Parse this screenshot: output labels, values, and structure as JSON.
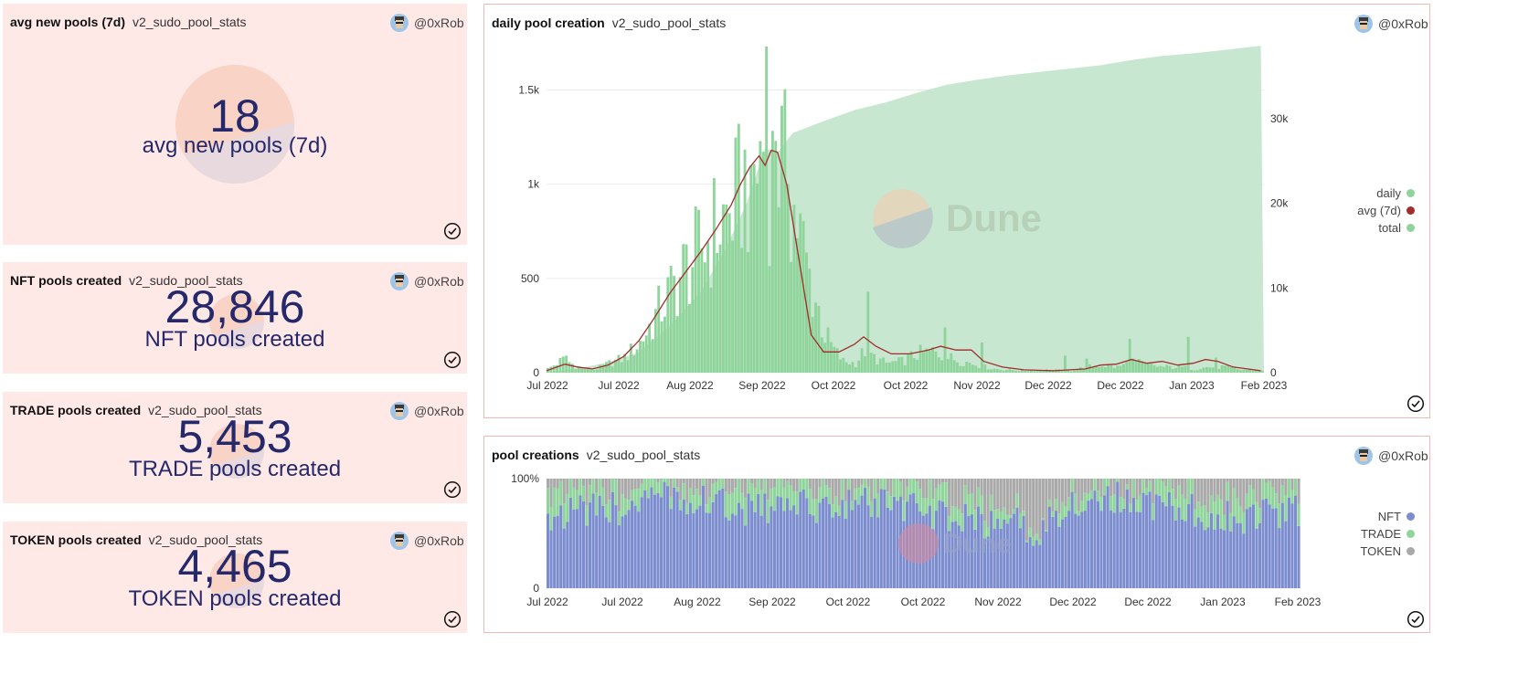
{
  "counters": [
    {
      "title": "avg new pools (7d)",
      "query": "v2_sudo_pool_stats",
      "author": "@0xRob",
      "value": "18",
      "label": "avg new pools (7d)"
    },
    {
      "title": "NFT pools created",
      "query": "v2_sudo_pool_stats",
      "author": "@0xRob",
      "value": "28,846",
      "label": "NFT pools created"
    },
    {
      "title": "TRADE pools created",
      "query": "v2_sudo_pool_stats",
      "author": "@0xRob",
      "value": "5,453",
      "label": "TRADE pools created"
    },
    {
      "title": "TOKEN pools created",
      "query": "v2_sudo_pool_stats",
      "author": "@0xRob",
      "value": "4,465",
      "label": "TOKEN pools created"
    }
  ],
  "daily_panel": {
    "title": "daily pool creation",
    "query": "v2_sudo_pool_stats",
    "author": "@0xRob",
    "watermark": "Dune"
  },
  "creations_panel": {
    "title": "pool creations",
    "query": "v2_sudo_pool_stats",
    "author": "@0xRob",
    "watermark": "Dune"
  },
  "colors": {
    "nft": "#7b8ccf",
    "trade": "#8fd49b",
    "token": "#a9a9a9",
    "avg": "#a42b2b",
    "total": "#c8e7d0",
    "accent": "#25296b"
  },
  "chart_data": [
    {
      "type": "bar",
      "title": "daily pool creation",
      "x_ticks": [
        "Jul 2022",
        "Jul 2022",
        "Aug 2022",
        "Sep 2022",
        "Oct 2022",
        "Oct 2022",
        "Nov 2022",
        "Dec 2022",
        "Dec 2022",
        "Jan 2023",
        "Feb 2023"
      ],
      "y_left_ticks": [
        "0",
        "500",
        "1k",
        "1.5k"
      ],
      "y_left_range": [
        0,
        1730
      ],
      "y_right_ticks": [
        "0",
        "10k",
        "20k",
        "30k"
      ],
      "y_right_range": [
        0,
        38500
      ],
      "series": [
        {
          "name": "daily",
          "type": "bar",
          "axis": "left",
          "color": "#8fd49b",
          "keypoints": [
            [
              0,
              20
            ],
            [
              5,
              70
            ],
            [
              10,
              30
            ],
            [
              15,
              15
            ],
            [
              20,
              50
            ],
            [
              25,
              80
            ],
            [
              30,
              160
            ],
            [
              35,
              300
            ],
            [
              40,
              430
            ],
            [
              45,
              560
            ],
            [
              50,
              650
            ],
            [
              55,
              780
            ],
            [
              60,
              850
            ],
            [
              63,
              980
            ],
            [
              66,
              1050
            ],
            [
              69,
              1130
            ],
            [
              70,
              1230
            ],
            [
              71,
              1730
            ],
            [
              72,
              1020
            ],
            [
              75,
              1150
            ],
            [
              78,
              1000
            ],
            [
              81,
              800
            ],
            [
              85,
              500
            ],
            [
              88,
              330
            ],
            [
              90,
              200
            ],
            [
              93,
              120
            ],
            [
              96,
              60
            ],
            [
              100,
              50
            ],
            [
              103,
              120
            ],
            [
              106,
              80
            ],
            [
              110,
              50
            ],
            [
              115,
              60
            ],
            [
              120,
              100
            ],
            [
              125,
              110
            ],
            [
              130,
              80
            ],
            [
              135,
              60
            ],
            [
              140,
              40
            ],
            [
              145,
              20
            ],
            [
              150,
              15
            ],
            [
              155,
              12
            ],
            [
              160,
              15
            ],
            [
              170,
              12
            ],
            [
              175,
              30
            ],
            [
              180,
              40
            ],
            [
              185,
              30
            ],
            [
              190,
              60
            ],
            [
              195,
              40
            ],
            [
              200,
              30
            ],
            [
              205,
              30
            ],
            [
              210,
              20
            ],
            [
              215,
              30
            ],
            [
              220,
              30
            ],
            [
              225,
              15
            ],
            [
              232,
              15
            ]
          ],
          "spikes": [
            [
              6,
              90
            ],
            [
              50,
              660
            ],
            [
              60,
              700
            ],
            [
              66,
              1100
            ],
            [
              71,
              1730
            ],
            [
              74,
              1230
            ],
            [
              78,
              1000
            ],
            [
              104,
              430
            ],
            [
              129,
              240
            ],
            [
              141,
              160
            ],
            [
              168,
              90
            ],
            [
              175,
              75
            ],
            [
              189,
              180
            ],
            [
              208,
              190
            ],
            [
              217,
              80
            ]
          ]
        },
        {
          "name": "avg (7d)",
          "type": "line",
          "axis": "left",
          "color": "#a42b2b",
          "points": [
            [
              0,
              10
            ],
            [
              6,
              45
            ],
            [
              10,
              30
            ],
            [
              15,
              20
            ],
            [
              20,
              40
            ],
            [
              25,
              85
            ],
            [
              30,
              170
            ],
            [
              35,
              290
            ],
            [
              40,
              420
            ],
            [
              45,
              530
            ],
            [
              50,
              640
            ],
            [
              55,
              760
            ],
            [
              60,
              890
            ],
            [
              63,
              1000
            ],
            [
              66,
              1090
            ],
            [
              69,
              1150
            ],
            [
              71,
              1100
            ],
            [
              73,
              1180
            ],
            [
              75,
              1170
            ],
            [
              78,
              1000
            ],
            [
              81,
              700
            ],
            [
              84,
              400
            ],
            [
              86,
              200
            ],
            [
              90,
              110
            ],
            [
              95,
              110
            ],
            [
              100,
              150
            ],
            [
              103,
              190
            ],
            [
              107,
              140
            ],
            [
              112,
              100
            ],
            [
              118,
              100
            ],
            [
              124,
              120
            ],
            [
              128,
              140
            ],
            [
              133,
              120
            ],
            [
              138,
              120
            ],
            [
              142,
              60
            ],
            [
              148,
              30
            ],
            [
              155,
              15
            ],
            [
              165,
              10
            ],
            [
              175,
              20
            ],
            [
              180,
              40
            ],
            [
              185,
              45
            ],
            [
              190,
              70
            ],
            [
              195,
              50
            ],
            [
              200,
              60
            ],
            [
              205,
              40
            ],
            [
              210,
              50
            ],
            [
              214,
              70
            ],
            [
              218,
              60
            ],
            [
              223,
              30
            ],
            [
              232,
              10
            ]
          ]
        },
        {
          "name": "total",
          "type": "area",
          "axis": "right",
          "color": "#c8e7d0",
          "points": [
            [
              0,
              0
            ],
            [
              10,
              500
            ],
            [
              20,
              1200
            ],
            [
              30,
              2400
            ],
            [
              40,
              5500
            ],
            [
              50,
              9500
            ],
            [
              58,
              14500
            ],
            [
              65,
              20000
            ],
            [
              71,
              26500
            ],
            [
              75,
              26000
            ],
            [
              80,
              28300
            ],
            [
              90,
              29700
            ],
            [
              100,
              31000
            ],
            [
              110,
              31900
            ],
            [
              120,
              33000
            ],
            [
              130,
              34000
            ],
            [
              140,
              34600
            ],
            [
              150,
              35100
            ],
            [
              160,
              35500
            ],
            [
              170,
              35900
            ],
            [
              180,
              36300
            ],
            [
              190,
              36900
            ],
            [
              200,
              37400
            ],
            [
              210,
              37700
            ],
            [
              220,
              38100
            ],
            [
              232,
              38600
            ]
          ]
        }
      ],
      "legend": [
        "daily",
        "avg (7d)",
        "total"
      ]
    },
    {
      "type": "bar",
      "stacked_percent": true,
      "title": "pool creations",
      "x_ticks": [
        "Jul 2022",
        "Jul 2022",
        "Aug 2022",
        "Sep 2022",
        "Oct 2022",
        "Oct 2022",
        "Nov 2022",
        "Dec 2022",
        "Dec 2022",
        "Jan 2023",
        "Feb 2023"
      ],
      "y_ticks": [
        "0",
        "100%"
      ],
      "series": [
        {
          "name": "NFT",
          "color": "#7b8ccf",
          "share_keypoints": [
            [
              0,
              0.68
            ],
            [
              20,
              0.72
            ],
            [
              40,
              0.85
            ],
            [
              60,
              0.72
            ],
            [
              80,
              0.75
            ],
            [
              100,
              0.78
            ],
            [
              120,
              0.68
            ],
            [
              135,
              0.58
            ],
            [
              145,
              0.6
            ],
            [
              150,
              0.45
            ],
            [
              160,
              0.78
            ],
            [
              175,
              0.82
            ],
            [
              185,
              0.78
            ],
            [
              200,
              0.7
            ],
            [
              215,
              0.65
            ],
            [
              232,
              0.7
            ]
          ]
        },
        {
          "name": "TRADE",
          "color": "#8fd49b",
          "share_keypoints": [
            [
              0,
              0.22
            ],
            [
              20,
              0.18
            ],
            [
              40,
              0.1
            ],
            [
              60,
              0.2
            ],
            [
              80,
              0.17
            ],
            [
              100,
              0.14
            ],
            [
              120,
              0.22
            ],
            [
              135,
              0.12
            ],
            [
              145,
              0.08
            ],
            [
              150,
              0.05
            ],
            [
              160,
              0.12
            ],
            [
              175,
              0.1
            ],
            [
              185,
              0.13
            ],
            [
              200,
              0.2
            ],
            [
              215,
              0.2
            ],
            [
              232,
              0.18
            ]
          ]
        },
        {
          "name": "TOKEN",
          "color": "#a9a9a9",
          "share_keypoints": [
            [
              0,
              0.1
            ],
            [
              20,
              0.1
            ],
            [
              40,
              0.05
            ],
            [
              60,
              0.08
            ],
            [
              80,
              0.08
            ],
            [
              100,
              0.08
            ],
            [
              120,
              0.1
            ],
            [
              135,
              0.3
            ],
            [
              145,
              0.32
            ],
            [
              150,
              0.5
            ],
            [
              160,
              0.1
            ],
            [
              175,
              0.08
            ],
            [
              185,
              0.09
            ],
            [
              200,
              0.1
            ],
            [
              215,
              0.15
            ],
            [
              232,
              0.12
            ]
          ]
        }
      ],
      "legend": [
        "NFT",
        "TRADE",
        "TOKEN"
      ]
    }
  ]
}
